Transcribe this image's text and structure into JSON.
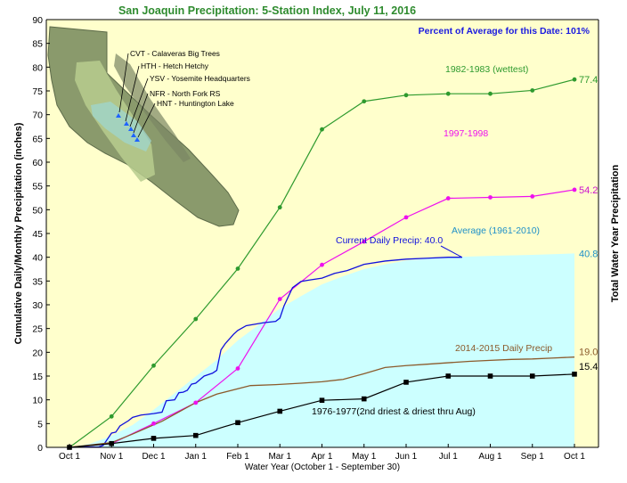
{
  "chart_data": {
    "type": "line",
    "title": "San Joaquin Precipitation: 5-Station Index, July 11, 2016",
    "percent_note": "Percent of Average for this Date: 101%",
    "ylabel": "Cumulative Daily/Monthly Precipitation (inches)",
    "ylabel_right": "Total Water Year Precipitation",
    "xlabel": "Water Year (October 1 - September 30)",
    "ylim": [
      0,
      90
    ],
    "yticks": [
      0,
      5,
      10,
      15,
      20,
      25,
      30,
      35,
      40,
      45,
      50,
      55,
      60,
      65,
      70,
      75,
      80,
      85,
      90
    ],
    "xticks": [
      "Oct 1",
      "Nov 1",
      "Dec 1",
      "Jan 1",
      "Feb 1",
      "Mar 1",
      "Apr 1",
      "May 1",
      "Jun 1",
      "Jul 1",
      "Aug 1",
      "Sep 1",
      "Oct 1"
    ],
    "grid": false,
    "background_color": "#ffffcc",
    "stations": [
      "CVT - Calaveras Big Trees",
      "HTH - Hetch Hetchy",
      "YSV - Yosemite Headquarters",
      "NFR - North Fork RS",
      "HNT - Huntington Lake"
    ],
    "series": [
      {
        "name": "Average (1961-2010)",
        "kind": "area",
        "color": "#ccffff",
        "x": [
          0,
          0.5,
          1,
          1.5,
          2,
          2.5,
          3,
          3.5,
          4,
          4.5,
          5,
          5.5,
          6,
          6.5,
          7,
          7.5,
          8,
          8.5,
          9,
          10,
          11,
          12
        ],
        "values": [
          0,
          0.8,
          2.4,
          4.7,
          7.9,
          11.4,
          14.9,
          18.4,
          22.5,
          25.8,
          29.2,
          31.8,
          34.3,
          36.0,
          37.5,
          38.5,
          39.3,
          39.7,
          40.0,
          40.3,
          40.5,
          40.8
        ],
        "end_label": "40.8",
        "end_label_color": "#1e90c8",
        "label_color": "#1e90c8"
      },
      {
        "name": "1982-1983 (wettest)",
        "color": "#2e9a2e",
        "markers": "circle",
        "x": [
          0,
          1,
          2,
          3,
          4,
          5,
          6,
          7,
          8,
          9,
          10,
          11,
          12
        ],
        "values": [
          0,
          6.5,
          17.2,
          27.0,
          37.6,
          50.5,
          66.9,
          72.8,
          74.1,
          74.4,
          74.4,
          75.1,
          77.4
        ],
        "end_label": "77.4",
        "end_label_color": "#2e9a2e",
        "label_color": "#2e9a2e"
      },
      {
        "name": "1997-1998",
        "color": "#ee11ee",
        "markers": "circle",
        "x": [
          0,
          1,
          2,
          3,
          4,
          5,
          6,
          7,
          8,
          9,
          10,
          11,
          12
        ],
        "values": [
          0,
          0.8,
          5.0,
          9.4,
          16.6,
          31.2,
          38.4,
          43.3,
          48.4,
          52.4,
          52.6,
          52.8,
          54.2
        ],
        "end_label": "54.2",
        "end_label_color": "#cc11cc",
        "label_color": "#ee11ee"
      },
      {
        "name": "Current Daily Precip: 40.0",
        "color": "#1010dd",
        "markers": "none",
        "x": [
          0,
          0.7,
          0.8,
          1.0,
          1.1,
          1.2,
          1.4,
          1.5,
          1.7,
          2.0,
          2.2,
          2.3,
          2.5,
          2.6,
          2.7,
          2.8,
          2.9,
          3.0,
          3.2,
          3.4,
          3.5,
          3.6,
          3.7,
          3.8,
          3.9,
          4.0,
          4.2,
          4.4,
          4.6,
          4.9,
          5.0,
          5.1,
          5.3,
          5.5,
          5.7,
          6.0,
          6.3,
          6.6,
          7.0,
          7.5,
          8.0,
          8.5,
          9.0,
          9.33
        ],
        "values": [
          0,
          0.1,
          0.4,
          3.0,
          3.2,
          4.5,
          5.6,
          6.3,
          6.8,
          7.1,
          7.4,
          9.8,
          10.0,
          11.5,
          11.6,
          12.0,
          13.3,
          13.5,
          15.0,
          15.6,
          16.2,
          20.5,
          21.8,
          22.8,
          23.8,
          24.6,
          25.6,
          25.9,
          26.2,
          26.5,
          27.2,
          29.8,
          33.6,
          34.9,
          35.2,
          35.6,
          36.6,
          37.2,
          38.5,
          39.2,
          39.6,
          39.8,
          40.0,
          40.0
        ],
        "label_color": "#1010dd"
      },
      {
        "name": "2014-2015 Daily Precip",
        "color": "#8b5a2b",
        "markers": "none",
        "x": [
          0,
          1,
          1.5,
          2.2,
          3.0,
          3.5,
          4.3,
          4.9,
          5.5,
          6.0,
          6.5,
          7.0,
          7.5,
          8.0,
          8.5,
          9.0,
          9.5,
          10.0,
          10.5,
          11.0,
          11.5,
          12.0
        ],
        "values": [
          0,
          1.0,
          2.8,
          5.5,
          9.4,
          11.2,
          13.0,
          13.2,
          13.5,
          13.8,
          14.3,
          15.5,
          16.8,
          17.2,
          17.5,
          17.8,
          18.1,
          18.3,
          18.5,
          18.6,
          18.8,
          19.0
        ],
        "end_label": "19.0",
        "end_label_color": "#8b5a2b",
        "label_color": "#8b5a2b"
      },
      {
        "name": "1976-1977(2nd driest & driest thru Aug)",
        "color": "#000000",
        "markers": "square",
        "x": [
          0,
          1,
          2,
          3,
          4,
          5,
          6,
          7,
          8,
          9,
          10,
          11,
          12
        ],
        "values": [
          0,
          0.8,
          1.9,
          2.5,
          5.2,
          7.6,
          9.9,
          10.2,
          13.7,
          15.0,
          15.0,
          15.0,
          15.4
        ],
        "end_label": "15.4",
        "end_label_color": "#000000",
        "label_color": "#000000"
      }
    ]
  }
}
